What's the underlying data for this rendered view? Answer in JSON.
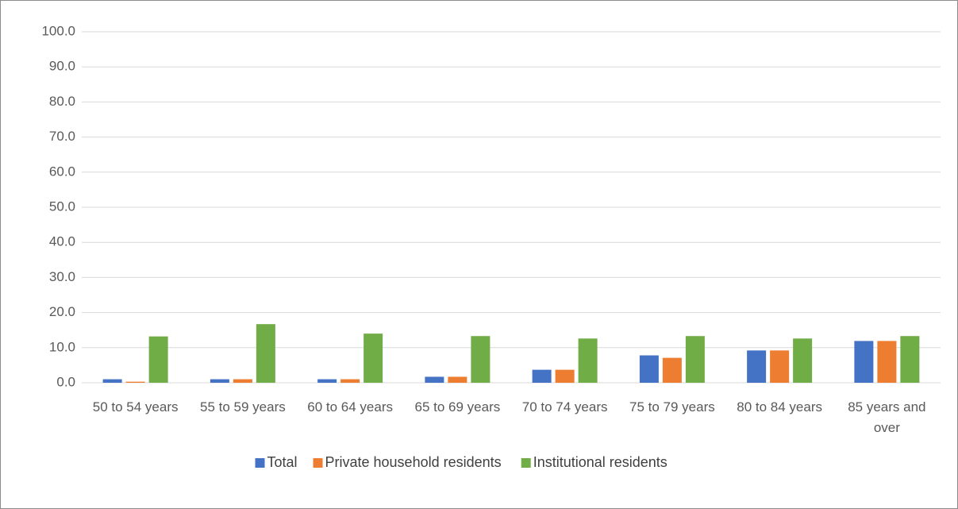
{
  "chart_data": {
    "type": "bar",
    "categories": [
      "50 to 54 years",
      "55 to 59 years",
      "60 to 64 years",
      "65 to 69 years",
      "70 to 74 years",
      "75 to 79 years",
      "80 to 84 years",
      "85 years and over"
    ],
    "series": [
      {
        "name": "Total",
        "color": "#4472c4",
        "values": [
          1.0,
          1.0,
          1.0,
          1.7,
          3.7,
          7.8,
          9.2,
          11.9
        ]
      },
      {
        "name": "Private household residents",
        "color": "#ed7d31",
        "values": [
          0.3,
          1.0,
          1.0,
          1.7,
          3.7,
          7.1,
          9.2,
          11.9
        ]
      },
      {
        "name": "Institutional residents",
        "color": "#70ad47",
        "values": [
          13.2,
          16.7,
          14.0,
          13.3,
          12.6,
          13.3,
          12.6,
          13.3
        ]
      }
    ],
    "ylim": [
      0,
      100
    ],
    "yticks": [
      {
        "value": 0,
        "label": "0.0"
      },
      {
        "value": 10,
        "label": "10.0"
      },
      {
        "value": 20,
        "label": "20.0"
      },
      {
        "value": 30,
        "label": "30.0"
      },
      {
        "value": 40,
        "label": "40.0"
      },
      {
        "value": 50,
        "label": "50.0"
      },
      {
        "value": 60,
        "label": "60.0"
      },
      {
        "value": 70,
        "label": "70.0"
      },
      {
        "value": 80,
        "label": "80.0"
      },
      {
        "value": 90,
        "label": "90.0"
      },
      {
        "value": 100,
        "label": "100.0"
      }
    ],
    "grid": true,
    "legend": "bottom"
  }
}
